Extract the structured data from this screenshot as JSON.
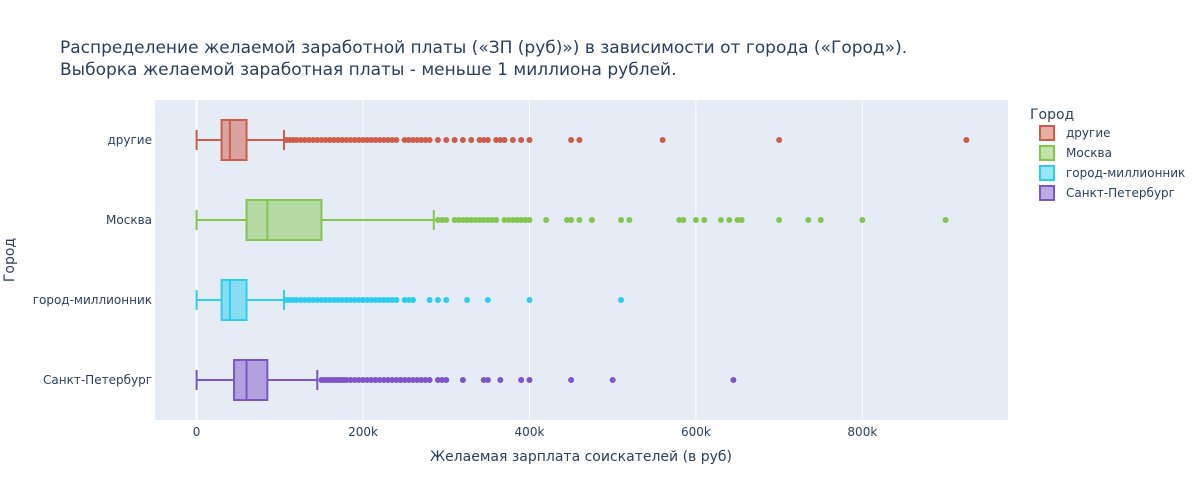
{
  "chart_data": {
    "type": "box",
    "orientation": "horizontal",
    "title": {
      "line1": "Распределение желаемой заработной платы («ЗП (руб)») в зависимости от города («Город»).",
      "line2": "Выборка желаемой заработная платы - меньше 1 миллиона рублей."
    },
    "xlabel": "Желаемая зарплата соискателей (в руб)",
    "ylabel": "Город",
    "xlim": [
      -50000,
      975000
    ],
    "xticks": [
      {
        "value": 0,
        "label": "0"
      },
      {
        "value": 200000,
        "label": "200k"
      },
      {
        "value": 400000,
        "label": "400k"
      },
      {
        "value": 600000,
        "label": "600k"
      },
      {
        "value": 800000,
        "label": "800k"
      }
    ],
    "grid": true,
    "legend": {
      "title": "Город",
      "placement": "top-right"
    },
    "series": [
      {
        "name": "другие",
        "color": "#cd5c48",
        "min": 0,
        "q1": 30000,
        "median": 40000,
        "q3": 60000,
        "upper_fence": 105000,
        "outliers": [
          108000,
          112000,
          116000,
          120000,
          125000,
          130000,
          135000,
          140000,
          145000,
          150000,
          155000,
          160000,
          165000,
          170000,
          175000,
          180000,
          185000,
          190000,
          195000,
          200000,
          205000,
          210000,
          215000,
          220000,
          225000,
          230000,
          235000,
          240000,
          250000,
          255000,
          260000,
          265000,
          270000,
          275000,
          280000,
          290000,
          300000,
          310000,
          320000,
          330000,
          340000,
          345000,
          350000,
          360000,
          365000,
          370000,
          380000,
          390000,
          400000,
          450000,
          460000,
          560000,
          700000,
          925000
        ]
      },
      {
        "name": "Москва",
        "color": "#83c54f",
        "min": 0,
        "q1": 60000,
        "median": 85000,
        "q3": 150000,
        "upper_fence": 285000,
        "outliers": [
          290000,
          295000,
          300000,
          310000,
          315000,
          320000,
          325000,
          330000,
          335000,
          340000,
          345000,
          350000,
          355000,
          360000,
          370000,
          375000,
          380000,
          385000,
          390000,
          395000,
          400000,
          420000,
          445000,
          450000,
          460000,
          475000,
          510000,
          520000,
          580000,
          585000,
          600000,
          610000,
          630000,
          640000,
          650000,
          655000,
          700000,
          735000,
          750000,
          800000,
          900000
        ]
      },
      {
        "name": "город-миллионник",
        "color": "#2ccdef",
        "min": 0,
        "q1": 30000,
        "median": 40000,
        "q3": 60000,
        "upper_fence": 105000,
        "outliers": [
          108000,
          112000,
          116000,
          120000,
          125000,
          130000,
          135000,
          140000,
          145000,
          150000,
          155000,
          160000,
          165000,
          170000,
          175000,
          180000,
          185000,
          190000,
          195000,
          200000,
          205000,
          210000,
          215000,
          220000,
          225000,
          230000,
          235000,
          240000,
          250000,
          255000,
          260000,
          280000,
          290000,
          300000,
          325000,
          350000,
          400000,
          510000
        ]
      },
      {
        "name": "Санкт-Петербург",
        "color": "#7e55c8",
        "min": 0,
        "q1": 45000,
        "median": 60000,
        "q3": 85000,
        "upper_fence": 145000,
        "outliers": [
          150000,
          153000,
          156000,
          159000,
          162000,
          165000,
          168000,
          171000,
          174000,
          177000,
          180000,
          185000,
          190000,
          195000,
          200000,
          205000,
          210000,
          215000,
          220000,
          225000,
          230000,
          235000,
          240000,
          245000,
          250000,
          255000,
          260000,
          265000,
          270000,
          275000,
          280000,
          290000,
          295000,
          300000,
          320000,
          345000,
          350000,
          365000,
          390000,
          400000,
          450000,
          500000,
          645000
        ]
      }
    ]
  }
}
